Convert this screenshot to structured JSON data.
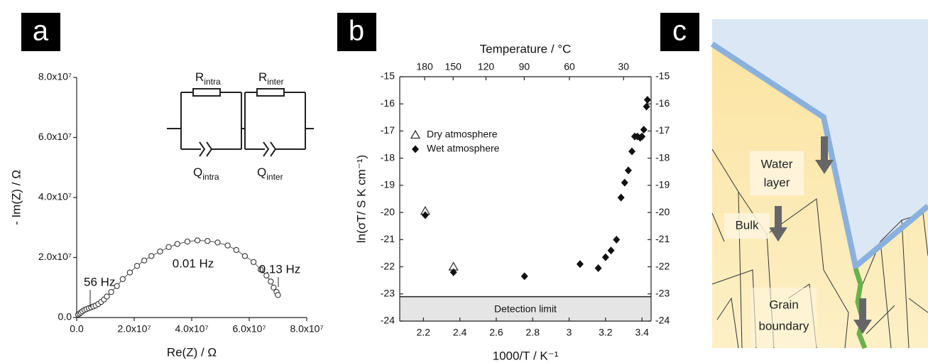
{
  "chart_data": [
    {
      "type": "scatter",
      "label": "a",
      "x_label": "Re(Z) / Ω",
      "y_label": "- Im(Z) / Ω",
      "xlim": [
        0,
        80000000.0
      ],
      "ylim": [
        0,
        80000000.0
      ],
      "xticks": [
        {
          "value": 0,
          "label": "0.0"
        },
        {
          "value": 20000000.0,
          "label": "2.0x10⁷"
        },
        {
          "value": 40000000.0,
          "label": "4.0x10⁷"
        },
        {
          "value": 60000000.0,
          "label": "6.0x10⁷"
        },
        {
          "value": 80000000.0,
          "label": "8.0x10⁷"
        }
      ],
      "yticks": [
        {
          "value": 0,
          "label": "0.0"
        },
        {
          "value": 20000000.0,
          "label": "2.0x10⁷"
        },
        {
          "value": 40000000.0,
          "label": "4.0x10⁷"
        },
        {
          "value": 60000000.0,
          "label": "6.0x10⁷"
        },
        {
          "value": 80000000.0,
          "label": "8.0x10⁷"
        }
      ],
      "color": "#333333",
      "x": [
        500000.0,
        1000000.0,
        1500000.0,
        2000000.0,
        2700000.0,
        3400000.0,
        4200000.0,
        5000000.0,
        5800000.0,
        6600000.0,
        7500000.0,
        8500000.0,
        9500000.0,
        10500000.0,
        12000000.0,
        14000000.0,
        16000000.0,
        18500000.0,
        21000000.0,
        23500000.0,
        26000000.0,
        29000000.0,
        32000000.0,
        35000000.0,
        38500000.0,
        42000000.0,
        45500000.0,
        49000000.0,
        52500000.0,
        55500000.0,
        58500000.0,
        61500000.0,
        64000000.0,
        66000000.0,
        67500000.0,
        68500000.0,
        69500000.0,
        70000000.0
      ],
      "values": [
        1000000.0,
        1300000.0,
        1700000.0,
        2100000.0,
        2500000.0,
        2800000.0,
        3100000.0,
        3400000.0,
        3700000.0,
        4000000.0,
        4500000.0,
        5200000.0,
        6000000.0,
        7000000.0,
        8500000.0,
        10500000.0,
        12800000.0,
        15000000.0,
        17200000.0,
        19000000.0,
        20500000.0,
        22000000.0,
        23500000.0,
        24500000.0,
        25300000.0,
        25700000.0,
        25500000.0,
        25000000.0,
        24000000.0,
        22500000.0,
        20500000.0,
        18500000.0,
        16000000.0,
        14000000.0,
        12000000.0,
        10000000.0,
        8500000.0,
        7500000.0
      ],
      "annotations": [
        "56 Hz",
        "0.01 Hz",
        "0.13 Hz"
      ],
      "circuit": [
        {
          "symbol": "R",
          "subscript": "intra"
        },
        {
          "symbol": "R",
          "subscript": "inter"
        },
        {
          "symbol": "Q",
          "subscript": "intra"
        },
        {
          "symbol": "Q",
          "subscript": "inter"
        }
      ]
    },
    {
      "type": "scatter",
      "label": "b",
      "x_label": "1000/T / K⁻¹",
      "y_label": "ln(σT/ S K cm⁻¹)",
      "x2_label": "Temperature / °C",
      "xlim": [
        2.07,
        3.45
      ],
      "ylim": [
        -24,
        -15
      ],
      "xticks": [
        2.2,
        2.4,
        2.6,
        2.8,
        3.0,
        3.2,
        3.4
      ],
      "yticks": [
        -24,
        -23,
        -22,
        -21,
        -20,
        -19,
        -18,
        -17,
        -16,
        -15
      ],
      "x2ticks": [
        180,
        150,
        120,
        90,
        60,
        30
      ],
      "legend": "upper-left",
      "detection_limit": {
        "label": "Detection limit",
        "value": -23.1
      },
      "series": [
        {
          "name": "Dry atmosphere",
          "marker": "triangle",
          "color": "#333333",
          "x": [
            2.21,
            2.365
          ],
          "values": [
            -19.95,
            -22.0
          ]
        },
        {
          "name": "Wet atmosphere",
          "marker": "diamond",
          "color": "#111111",
          "x": [
            2.21,
            2.365,
            2.755,
            3.06,
            3.16,
            3.2,
            3.23,
            3.26,
            3.285,
            3.305,
            3.325,
            3.345,
            3.36,
            3.375,
            3.39,
            3.4,
            3.41,
            3.425,
            3.43
          ],
          "values": [
            -20.1,
            -22.2,
            -22.35,
            -21.9,
            -22.05,
            -21.65,
            -21.4,
            -21.0,
            -19.45,
            -18.9,
            -18.45,
            -17.75,
            -17.2,
            -17.2,
            -17.25,
            -17.2,
            -16.95,
            -16.1,
            -15.85
          ]
        }
      ]
    }
  ],
  "diagram": {
    "label": "c",
    "labels": [
      {
        "lines": [
          "Water",
          "layer"
        ]
      },
      {
        "lines": [
          "Bulk"
        ]
      },
      {
        "lines": [
          "Grain",
          "boundary"
        ]
      }
    ]
  }
}
